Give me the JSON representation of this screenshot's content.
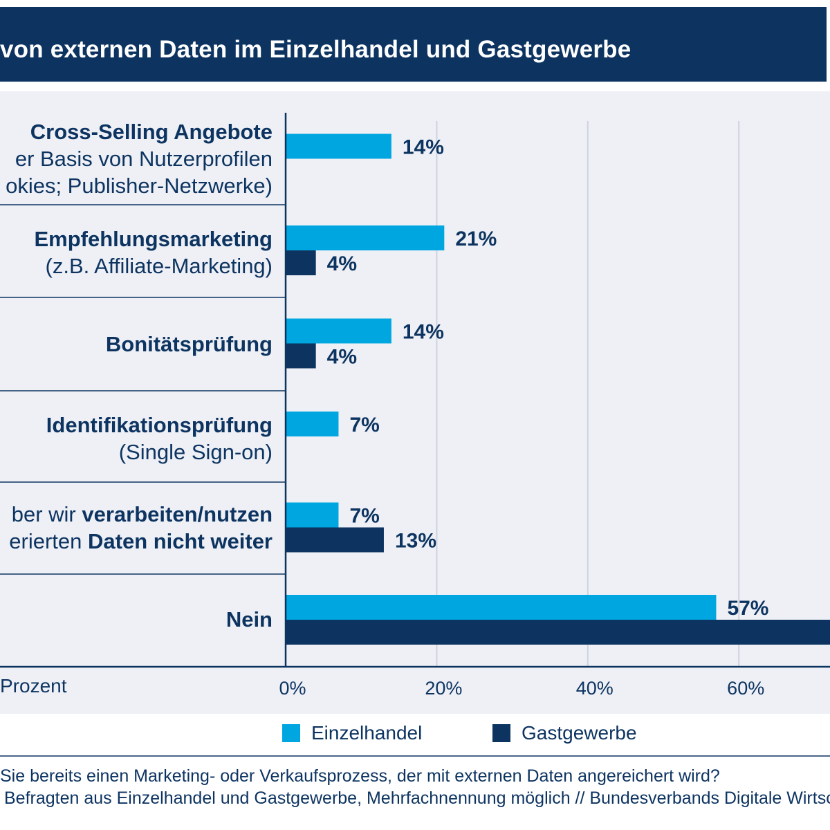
{
  "header": {
    "title": "von externen Daten im Einzelhandel und Gastgewerbe"
  },
  "colors": {
    "einzelhandel": "#00a6e0",
    "gastgewerbe": "#0d3461",
    "navy": "#0d3461",
    "panel": "#eef0f5"
  },
  "chart_data": {
    "type": "bar",
    "orientation": "horizontal",
    "categories": [
      "Cross-Selling Angebote er Basis von Nutzerprofilen okies; Publisher-Netzwerke)",
      "Empfehlungsmarketing (z.B. Affiliate-Marketing)",
      "Bonitätsprüfung",
      "Identifikationsprüfung (Single Sign-on)",
      "ber wir verarbeiten/nutzen erierten Daten nicht weiter",
      "Nein"
    ],
    "category_labels": [
      [
        [
          {
            "t": "Cross-Selling Angebote",
            "b": true
          }
        ],
        [
          {
            "t": "er Basis von Nutzerprofilen",
            "b": false
          }
        ],
        [
          {
            "t": "okies; Publisher-Netzwerke)",
            "b": false
          }
        ]
      ],
      [
        [
          {
            "t": "Empfehlungsmarketing",
            "b": true
          }
        ],
        [
          {
            "t": "(z.B. Affiliate-Marketing)",
            "b": false
          }
        ]
      ],
      [
        [
          {
            "t": "Bonitätsprüfung",
            "b": true
          }
        ]
      ],
      [
        [
          {
            "t": "Identifikationsprüfung",
            "b": true
          }
        ],
        [
          {
            "t": "(Single Sign-on)",
            "b": false
          }
        ]
      ],
      [
        [
          {
            "t": "ber wir ",
            "b": false
          },
          {
            "t": "verarbeiten/nutzen",
            "b": true
          }
        ],
        [
          {
            "t": "erierten ",
            "b": false
          },
          {
            "t": "Daten nicht weiter",
            "b": true
          }
        ]
      ],
      [
        [
          {
            "t": "Nein",
            "b": true
          }
        ]
      ]
    ],
    "series": [
      {
        "name": "Einzelhandel",
        "values": [
          14,
          21,
          14,
          7,
          7,
          57
        ],
        "labels": [
          "14%",
          "21%",
          "14%",
          "7%",
          "7%",
          "57%"
        ]
      },
      {
        "name": "Gastgewerbe",
        "values": [
          null,
          4,
          4,
          null,
          13,
          74
        ],
        "labels": [
          "",
          "4%",
          "4%",
          "",
          "13%",
          ""
        ]
      }
    ],
    "x_ticks": [
      {
        "value": 0,
        "label": "0%"
      },
      {
        "value": 20,
        "label": "20%"
      },
      {
        "value": 40,
        "label": "40%"
      },
      {
        "value": 60,
        "label": "60%"
      }
    ],
    "xlim": [
      0,
      80
    ],
    "grid": true,
    "xlabel": "Prozent",
    "legend": {
      "position": "bottom",
      "items": [
        "Einzelhandel",
        "Gastgewerbe"
      ]
    }
  },
  "footer": {
    "question": "Sie bereits einen Marketing- oder Verkaufsprozess, der mit externen Daten angereichert wird?",
    "source": "Befragten aus Einzelhandel und Gastgewerbe, Mehrfachnennung möglich // Bundesverbands Digitale Wirtsch"
  }
}
